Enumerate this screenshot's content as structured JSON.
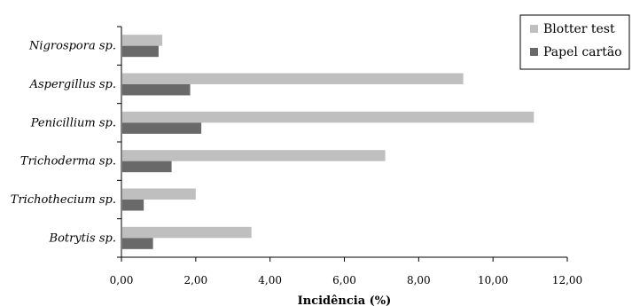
{
  "chart_data": {
    "type": "bar",
    "orientation": "horizontal",
    "categories": [
      "Nigrospora sp.",
      "Aspergillus sp.",
      "Penicillium sp.",
      "Trichoderma sp.",
      "Trichothecium sp.",
      "Botrytis sp."
    ],
    "series": [
      {
        "name": "Blotter test",
        "color": "#bfbfbf",
        "values": [
          1.1,
          9.2,
          11.1,
          7.1,
          2.0,
          3.5
        ]
      },
      {
        "name": "Papel cartão",
        "color": "#696969",
        "values": [
          1.0,
          1.85,
          2.15,
          1.35,
          0.6,
          0.85
        ]
      }
    ],
    "title": "",
    "xlabel": "Incidência (%)",
    "ylabel": "",
    "xlim": [
      0,
      12
    ],
    "xticks": [
      "0,00",
      "2,00",
      "4,00",
      "6,00",
      "8,00",
      "10,00",
      "12,00"
    ],
    "grid": false,
    "legend_position": "top-right"
  }
}
